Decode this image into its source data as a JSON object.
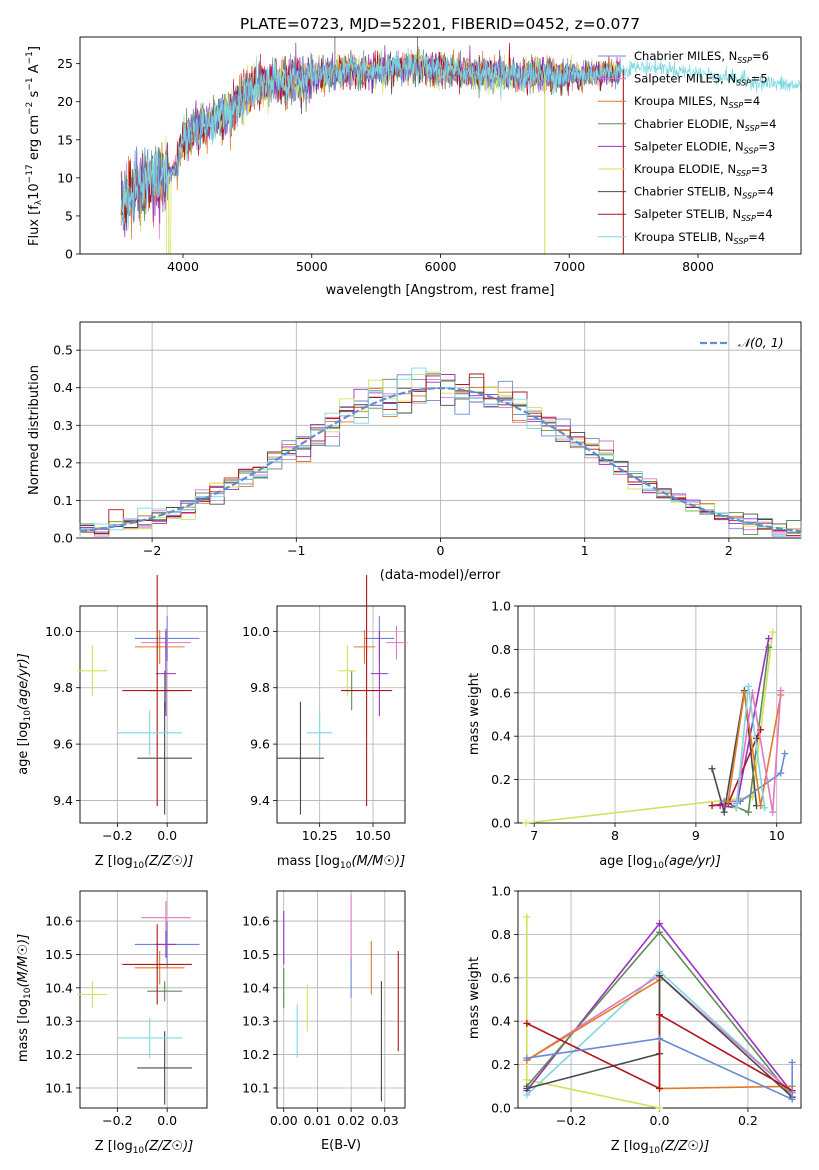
{
  "figure_title": "PLATE=0723, MJD=52201, FIBERID=0452, z=0.077",
  "colors": {
    "chabrier_miles": "#6a8ad8",
    "salpeter_miles": "#e377c2",
    "kroupa_miles": "#e07b25",
    "chabrier_elodie": "#5e8c57",
    "salpeter_elodie": "#9b30c4",
    "kroupa_elodie": "#d4e157",
    "chabrier_stelib": "#4a4a4a",
    "salpeter_stelib": "#b0141c",
    "kroupa_stelib": "#7dd8e0",
    "normal_curve": "#5b8fd6"
  },
  "chart_data": [
    {
      "id": "spectrum",
      "type": "line",
      "title": "PLATE=0723, MJD=52201, FIBERID=0452, z=0.077",
      "xlabel": "wavelength [Angstrom, rest frame]",
      "ylabel": "Flux [fλ10⁻¹⁷ erg cm⁻² s⁻¹ A⁻¹]",
      "xlim": [
        3200,
        8800
      ],
      "ylim": [
        0,
        28.5
      ],
      "xticks": [
        4000,
        5000,
        6000,
        7000,
        8000
      ],
      "yticks": [
        0,
        5,
        10,
        15,
        20,
        25
      ],
      "grid": false,
      "legend_position": "right",
      "series": [
        {
          "name": "Chabrier MILES, N_SSP=6",
          "name_main": "Chabrier MILES, N",
          "name_sub": "SSP",
          "name_tail": "=6",
          "color_key": "chabrier_miles"
        },
        {
          "name": "Salpeter MILES, N_SSP=5",
          "name_main": "Salpeter MILES, N",
          "name_sub": "SSP",
          "name_tail": "=5",
          "color_key": "salpeter_miles"
        },
        {
          "name": "Kroupa MILES, N_SSP=4",
          "name_main": "Kroupa MILES, N",
          "name_sub": "SSP",
          "name_tail": "=4",
          "color_key": "kroupa_miles"
        },
        {
          "name": "Chabrier ELODIE, N_SSP=4",
          "name_main": "Chabrier ELODIE, N",
          "name_sub": "SSP",
          "name_tail": "=4",
          "color_key": "chabrier_elodie"
        },
        {
          "name": "Salpeter ELODIE, N_SSP=3",
          "name_main": "Salpeter ELODIE, N",
          "name_sub": "SSP",
          "name_tail": "=3",
          "color_key": "salpeter_elodie"
        },
        {
          "name": "Kroupa ELODIE, N_SSP=3",
          "name_main": "Kroupa ELODIE, N",
          "name_sub": "SSP",
          "name_tail": "=3",
          "color_key": "kroupa_elodie"
        },
        {
          "name": "Chabrier STELIB, N_SSP=4",
          "name_main": "Chabrier STELIB, N",
          "name_sub": "SSP",
          "name_tail": "=4",
          "color_key": "chabrier_stelib"
        },
        {
          "name": "Salpeter STELIB, N_SSP=4",
          "name_main": "Salpeter STELIB, N",
          "name_sub": "SSP",
          "name_tail": "=4",
          "color_key": "salpeter_stelib"
        },
        {
          "name": "Kroupa STELIB, N_SSP=4",
          "name_main": "Kroupa STELIB, N",
          "name_sub": "SSP",
          "name_tail": "=4",
          "color_key": "kroupa_stelib"
        }
      ],
      "continuum": {
        "x": [
          3520,
          3600,
          3700,
          3800,
          3900,
          3950,
          4000,
          4100,
          4200,
          4300,
          4400,
          4500,
          4700,
          4900,
          5100,
          5300,
          5500,
          5700,
          5900,
          6100,
          6300,
          6500,
          6700,
          6900,
          7100,
          7300,
          7500,
          7700,
          7900,
          8100,
          8300,
          8500,
          8800
        ],
        "y": [
          6.5,
          8.0,
          9.5,
          10.0,
          10.5,
          11.5,
          15.0,
          16.5,
          17.0,
          18.0,
          19.0,
          21.5,
          22.5,
          23.0,
          23.5,
          24.0,
          24.0,
          24.5,
          24.5,
          24.0,
          23.8,
          23.5,
          23.5,
          23.5,
          23.5,
          23.8,
          24.5,
          24.5,
          24.0,
          23.5,
          23.0,
          22.5,
          22.0
        ]
      },
      "noise": [
        {
          "x": [
            3520,
            3880
          ],
          "amplitude": 4.5
        },
        {
          "x": [
            3950,
            5000
          ],
          "amplitude": 3.0
        },
        {
          "x": [
            5000,
            7000
          ],
          "amplitude": 2.2
        },
        {
          "x": [
            7000,
            7400
          ],
          "amplitude": 1.8
        }
      ],
      "model_wavelength_range": [
        3520,
        7400
      ],
      "kroupa_stelib_wavelength_range": [
        3520,
        8800
      ],
      "dips": [
        {
          "x": 3890,
          "y": 0,
          "series": "Kroupa ELODIE"
        },
        {
          "x": 6810,
          "y": 0,
          "series": "Kroupa ELODIE"
        },
        {
          "x": 7420,
          "y": 0,
          "series": "Salpeter STELIB"
        }
      ],
      "spikes": [
        {
          "x": 5180,
          "y": 28.5
        },
        {
          "x": 5820,
          "y": 28.5
        }
      ]
    },
    {
      "id": "residuals",
      "type": "step-histogram",
      "xlabel": "(data-model)/error",
      "ylabel": "Normed distribution",
      "xlim": [
        -2.5,
        2.5
      ],
      "ylim": [
        0,
        0.575
      ],
      "xticks": [
        -2,
        -1,
        0,
        1,
        2
      ],
      "xtick_labels": [
        "−2",
        "−1",
        "0",
        "1",
        "2"
      ],
      "yticks": [
        0.0,
        0.1,
        0.2,
        0.3,
        0.4,
        0.5
      ],
      "ytick_labels": [
        "0.0",
        "0.1",
        "0.2",
        "0.3",
        "0.4",
        "0.5"
      ],
      "grid": true,
      "legend_position": "top-right",
      "legend_label": "𝒩(0, 1)",
      "bin_width": 0.1,
      "normal": {
        "mean": 0,
        "sigma": 1,
        "name": "N(0,1)"
      }
    },
    {
      "id": "age-vs-metallicity",
      "type": "errorbar",
      "xlabel_main": "Z [log",
      "xlabel_sub": "10",
      "xlabel_tail": "(Z/Z☉)]",
      "ylabel_main": "age  [log",
      "ylabel_sub": "10",
      "ylabel_tail": "(age/yr)]",
      "xlim": [
        -0.35,
        0.16
      ],
      "ylim": [
        9.32,
        10.09
      ],
      "xticks": [
        -0.2,
        0.0
      ],
      "xtick_labels": [
        "−0.2",
        "0.0"
      ],
      "yticks": [
        9.4,
        9.6,
        9.8,
        10.0
      ],
      "ytick_labels": [
        "9.4",
        "9.6",
        "9.8",
        "10.0"
      ],
      "grid": true,
      "points": [
        {
          "c": "chabrier_miles",
          "x": 0.0,
          "xerr": 0.13,
          "y": 9.975,
          "yerr": 0.08
        },
        {
          "c": "salpeter_miles",
          "x": -0.005,
          "xerr": 0.1,
          "y": 9.96,
          "yerr": 0.05
        },
        {
          "c": "kroupa_miles",
          "x": -0.03,
          "xerr": 0.1,
          "y": 9.945,
          "yerr": 0.06
        },
        {
          "c": "chabrier_elodie",
          "x": -0.01,
          "xerr": 0.07,
          "y": 9.79,
          "yerr": 0.07
        },
        {
          "c": "salpeter_elodie",
          "x": -0.005,
          "xerr": 0.04,
          "y": 9.85,
          "yerr": 0.15
        },
        {
          "c": "kroupa_elodie",
          "x": -0.3,
          "xerr": 0.06,
          "y": 9.86,
          "yerr": 0.09
        },
        {
          "c": "chabrier_stelib",
          "x": -0.01,
          "xerr": 0.11,
          "y": 9.55,
          "yerr": 0.2
        },
        {
          "c": "salpeter_stelib",
          "x": -0.04,
          "xerr": 0.14,
          "y": 9.79,
          "yerr": 0.41
        },
        {
          "c": "kroupa_stelib",
          "x": -0.07,
          "xerr": 0.13,
          "y": 9.64,
          "yerr": 0.08
        }
      ]
    },
    {
      "id": "age-vs-mass",
      "type": "errorbar",
      "xlabel_main": "mass [log",
      "xlabel_sub": "10",
      "xlabel_tail": "(M/M☉)]",
      "xlim": [
        10.05,
        10.65
      ],
      "ylim": [
        9.32,
        10.09
      ],
      "xticks": [
        10.25,
        10.5
      ],
      "xtick_labels": [
        "10.25",
        "10.50"
      ],
      "yticks": [
        9.4,
        9.6,
        9.8,
        10.0
      ],
      "ytick_labels": [
        "9.4",
        "9.6",
        "9.8",
        "10.0"
      ],
      "grid": true,
      "points": [
        {
          "c": "chabrier_miles",
          "x": 10.53,
          "xerr": 0.07,
          "y": 9.975,
          "yerr": 0.08
        },
        {
          "c": "salpeter_miles",
          "x": 10.61,
          "xerr": 0.05,
          "y": 9.96,
          "yerr": 0.06
        },
        {
          "c": "kroupa_miles",
          "x": 10.46,
          "xerr": 0.05,
          "y": 9.945,
          "yerr": 0.06
        },
        {
          "c": "chabrier_elodie",
          "x": 10.4,
          "xerr": 0.03,
          "y": 9.79,
          "yerr": 0.07
        },
        {
          "c": "salpeter_elodie",
          "x": 10.53,
          "xerr": 0.04,
          "y": 9.85,
          "yerr": 0.15
        },
        {
          "c": "kroupa_elodie",
          "x": 10.38,
          "xerr": 0.04,
          "y": 9.86,
          "yerr": 0.09
        },
        {
          "c": "chabrier_stelib",
          "x": 10.16,
          "xerr": 0.11,
          "y": 9.55,
          "yerr": 0.2
        },
        {
          "c": "salpeter_stelib",
          "x": 10.47,
          "xerr": 0.12,
          "y": 9.79,
          "yerr": 0.41
        },
        {
          "c": "kroupa_stelib",
          "x": 10.25,
          "xerr": 0.06,
          "y": 9.64,
          "yerr": 0.08
        }
      ]
    },
    {
      "id": "weights-vs-age",
      "type": "line",
      "xlabel_main": "age  [log",
      "xlabel_sub": "10",
      "xlabel_tail": "(age/yr)]",
      "ylabel": "mass weight",
      "xlim": [
        6.8,
        10.3
      ],
      "ylim": [
        0.0,
        1.0
      ],
      "xticks": [
        7,
        8,
        9,
        10
      ],
      "yticks": [
        0.0,
        0.2,
        0.4,
        0.6,
        0.8,
        1.0
      ],
      "ytick_labels": [
        "0.0",
        "0.2",
        "0.4",
        "0.6",
        "0.8",
        "1.0"
      ],
      "grid": true,
      "series": [
        {
          "c": "kroupa_elodie",
          "x": [
            6.9,
            9.7,
            9.95
          ],
          "y": [
            0.0,
            0.12,
            0.88
          ]
        },
        {
          "c": "chabrier_stelib",
          "x": [
            9.2,
            9.35,
            9.6,
            9.75
          ],
          "y": [
            0.25,
            0.05,
            0.61,
            0.08
          ]
        },
        {
          "c": "salpeter_elodie",
          "x": [
            9.3,
            9.5,
            9.9
          ],
          "y": [
            0.08,
            0.07,
            0.85
          ]
        },
        {
          "c": "chabrier_elodie",
          "x": [
            9.4,
            9.65,
            9.9
          ],
          "y": [
            0.09,
            0.05,
            0.81
          ]
        },
        {
          "c": "salpeter_stelib",
          "x": [
            9.2,
            9.4,
            9.75,
            9.8
          ],
          "y": [
            0.08,
            0.09,
            0.39,
            0.43
          ]
        },
        {
          "c": "chabrier_miles",
          "x": [
            9.35,
            9.55,
            10.05,
            10.1
          ],
          "y": [
            0.1,
            0.1,
            0.23,
            0.32
          ]
        },
        {
          "c": "kroupa_miles",
          "x": [
            9.4,
            9.6,
            9.8,
            10.05
          ],
          "y": [
            0.1,
            0.6,
            0.08,
            0.59
          ]
        },
        {
          "c": "salpeter_miles",
          "x": [
            9.5,
            9.7,
            9.95,
            10.05
          ],
          "y": [
            0.09,
            0.6,
            0.05,
            0.61
          ]
        },
        {
          "c": "kroupa_stelib",
          "x": [
            9.5,
            9.65,
            9.85
          ],
          "y": [
            0.07,
            0.63,
            0.07
          ]
        }
      ]
    },
    {
      "id": "mass-vs-metallicity",
      "type": "errorbar",
      "xlabel_main": "Z [log",
      "xlabel_sub": "10",
      "xlabel_tail": "(Z/Z☉)]",
      "ylabel_main": "mass [log",
      "ylabel_sub": "10",
      "ylabel_tail": "(M/M☉)]",
      "xlim": [
        -0.35,
        0.16
      ],
      "ylim": [
        10.04,
        10.69
      ],
      "xticks": [
        -0.2,
        0.0
      ],
      "xtick_labels": [
        "−0.2",
        "0.0"
      ],
      "yticks": [
        10.1,
        10.2,
        10.3,
        10.4,
        10.5,
        10.6
      ],
      "ytick_labels": [
        "10.1",
        "10.2",
        "10.3",
        "10.4",
        "10.5",
        "10.6"
      ],
      "grid": true,
      "points": [
        {
          "c": "chabrier_miles",
          "x": 0.0,
          "xerr": 0.13,
          "y": 10.53,
          "yerr": 0.07
        },
        {
          "c": "salpeter_miles",
          "x": -0.005,
          "xerr": 0.1,
          "y": 10.61,
          "yerr": 0.05
        },
        {
          "c": "kroupa_miles",
          "x": -0.03,
          "xerr": 0.1,
          "y": 10.46,
          "yerr": 0.05
        },
        {
          "c": "chabrier_elodie",
          "x": -0.01,
          "xerr": 0.07,
          "y": 10.39,
          "yerr": 0.03
        },
        {
          "c": "salpeter_elodie",
          "x": -0.005,
          "xerr": 0.04,
          "y": 10.53,
          "yerr": 0.04
        },
        {
          "c": "kroupa_elodie",
          "x": -0.3,
          "xerr": 0.06,
          "y": 10.38,
          "yerr": 0.04
        },
        {
          "c": "chabrier_stelib",
          "x": -0.01,
          "xerr": 0.11,
          "y": 10.16,
          "yerr": 0.11
        },
        {
          "c": "salpeter_stelib",
          "x": -0.04,
          "xerr": 0.14,
          "y": 10.47,
          "yerr": 0.12
        },
        {
          "c": "kroupa_stelib",
          "x": -0.07,
          "xerr": 0.13,
          "y": 10.25,
          "yerr": 0.06
        }
      ]
    },
    {
      "id": "mass-vs-ebv",
      "type": "errorbar",
      "xlabel": "E(B-V)",
      "xlim": [
        -0.002,
        0.036
      ],
      "ylim": [
        10.04,
        10.69
      ],
      "xticks": [
        0.0,
        0.01,
        0.02,
        0.03
      ],
      "xtick_labels": [
        "0.00",
        "0.01",
        "0.02",
        "0.03"
      ],
      "yticks": [
        10.1,
        10.2,
        10.3,
        10.4,
        10.5,
        10.6
      ],
      "ytick_labels": [
        "10.1",
        "10.2",
        "10.3",
        "10.4",
        "10.5",
        "10.6"
      ],
      "grid": true,
      "points": [
        {
          "c": "chabrier_miles",
          "x": 0.02,
          "xerr": 0,
          "y": 10.43,
          "yerr": 0.06
        },
        {
          "c": "salpeter_miles",
          "x": 0.02,
          "xerr": 0,
          "y": 10.58,
          "yerr": 0.1
        },
        {
          "c": "kroupa_miles",
          "x": 0.026,
          "xerr": 0,
          "y": 10.46,
          "yerr": 0.08
        },
        {
          "c": "chabrier_elodie",
          "x": 0.0,
          "xerr": 0,
          "y": 10.4,
          "yerr": 0.06
        },
        {
          "c": "salpeter_elodie",
          "x": 0.0,
          "xerr": 0,
          "y": 10.55,
          "yerr": 0.08
        },
        {
          "c": "kroupa_elodie",
          "x": 0.007,
          "xerr": 0,
          "y": 10.34,
          "yerr": 0.07
        },
        {
          "c": "chabrier_stelib",
          "x": 0.029,
          "xerr": 0,
          "y": 10.24,
          "yerr": 0.18
        },
        {
          "c": "salpeter_stelib",
          "x": 0.034,
          "xerr": 0,
          "y": 10.36,
          "yerr": 0.15
        },
        {
          "c": "kroupa_stelib",
          "x": 0.004,
          "xerr": 0,
          "y": 10.27,
          "yerr": 0.08
        }
      ]
    },
    {
      "id": "weights-vs-metallicity",
      "type": "line",
      "xlabel_main": "Z [log",
      "xlabel_sub": "10",
      "xlabel_tail": "(Z/Z☉)]",
      "ylabel": "mass weight",
      "xlim": [
        -0.32,
        0.32
      ],
      "ylim": [
        0.0,
        1.0
      ],
      "xticks": [
        -0.2,
        0.0,
        0.2
      ],
      "xtick_labels": [
        "−0.2",
        "0.0",
        "0.2"
      ],
      "yticks": [
        0.0,
        0.2,
        0.4,
        0.6,
        0.8,
        1.0
      ],
      "ytick_labels": [
        "0.0",
        "0.2",
        "0.4",
        "0.6",
        "0.8",
        "1.0"
      ],
      "grid": true,
      "series": [
        {
          "c": "kroupa_elodie",
          "x": [
            -0.3,
            -0.3,
            0.0
          ],
          "y": [
            0.88,
            0.13,
            0.0
          ]
        },
        {
          "c": "salpeter_elodie",
          "x": [
            -0.3,
            0.0,
            0.3
          ],
          "y": [
            0.08,
            0.85,
            0.07
          ]
        },
        {
          "c": "chabrier_elodie",
          "x": [
            -0.3,
            0.0,
            0.3
          ],
          "y": [
            0.1,
            0.81,
            0.05
          ]
        },
        {
          "c": "kroupa_stelib",
          "x": [
            -0.3,
            0.0,
            0.3
          ],
          "y": [
            0.06,
            0.63,
            0.07
          ]
        },
        {
          "c": "salpeter_miles",
          "x": [
            -0.3,
            0.0,
            0.3
          ],
          "y": [
            0.22,
            0.61,
            0.07
          ]
        },
        {
          "c": "kroupa_miles",
          "x": [
            -0.3,
            0.0,
            0.0,
            0.3
          ],
          "y": [
            0.22,
            0.59,
            0.09,
            0.1
          ]
        },
        {
          "c": "chabrier_stelib",
          "x": [
            -0.3,
            0.0,
            0.0,
            0.3
          ],
          "y": [
            0.09,
            0.25,
            0.61,
            0.05
          ]
        },
        {
          "c": "salpeter_stelib",
          "x": [
            -0.3,
            0.0,
            0.0,
            0.3
          ],
          "y": [
            0.39,
            0.09,
            0.43,
            0.08
          ]
        },
        {
          "c": "chabrier_miles",
          "x": [
            -0.3,
            0.0,
            0.3,
            0.3
          ],
          "y": [
            0.23,
            0.32,
            0.04,
            0.21
          ]
        }
      ]
    }
  ]
}
